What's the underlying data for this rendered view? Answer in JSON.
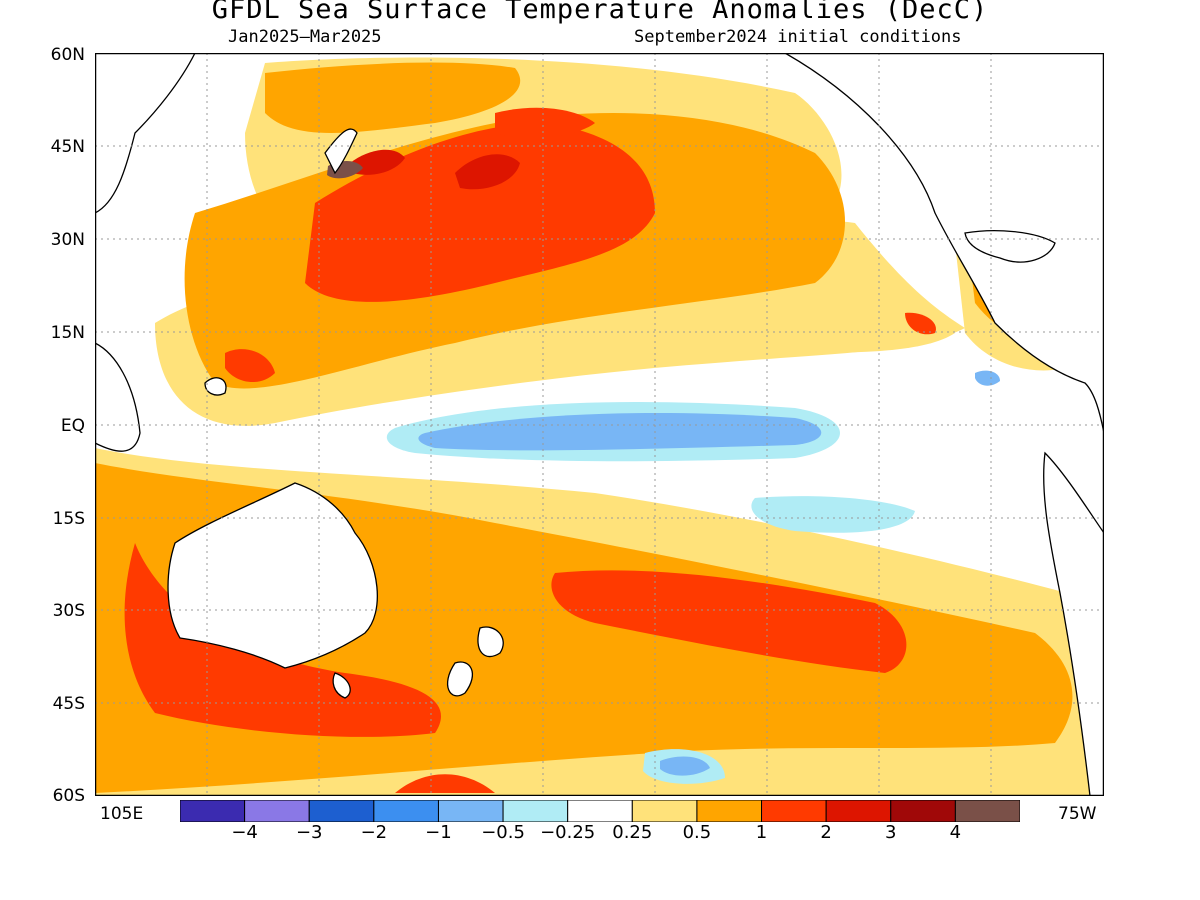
{
  "title": "GFDL Sea Surface Temperature Anomalies (DecC)",
  "subtitle_left": "Jan2025–Mar2025",
  "subtitle_right": "September2024 initial conditions",
  "lat_labels": [
    "60N",
    "45N",
    "30N",
    "15N",
    "EQ",
    "15S",
    "30S",
    "45S",
    "60S"
  ],
  "lon_left": "105E",
  "lon_right": "75W",
  "colorbar": {
    "colors": [
      "#3b2bb0",
      "#8a78e6",
      "#1d5fd0",
      "#3c8ff0",
      "#78b6f5",
      "#b0ecf5",
      "#ffffff",
      "#ffe27a",
      "#ffa500",
      "#ff3a00",
      "#dd1500",
      "#a00808",
      "#7a5048"
    ],
    "tick_labels": [
      "-4",
      "-3",
      "-2",
      "-1",
      "-0.5",
      "-0.25",
      "0.25",
      "0.5",
      "1",
      "2",
      "3",
      "4"
    ]
  }
}
